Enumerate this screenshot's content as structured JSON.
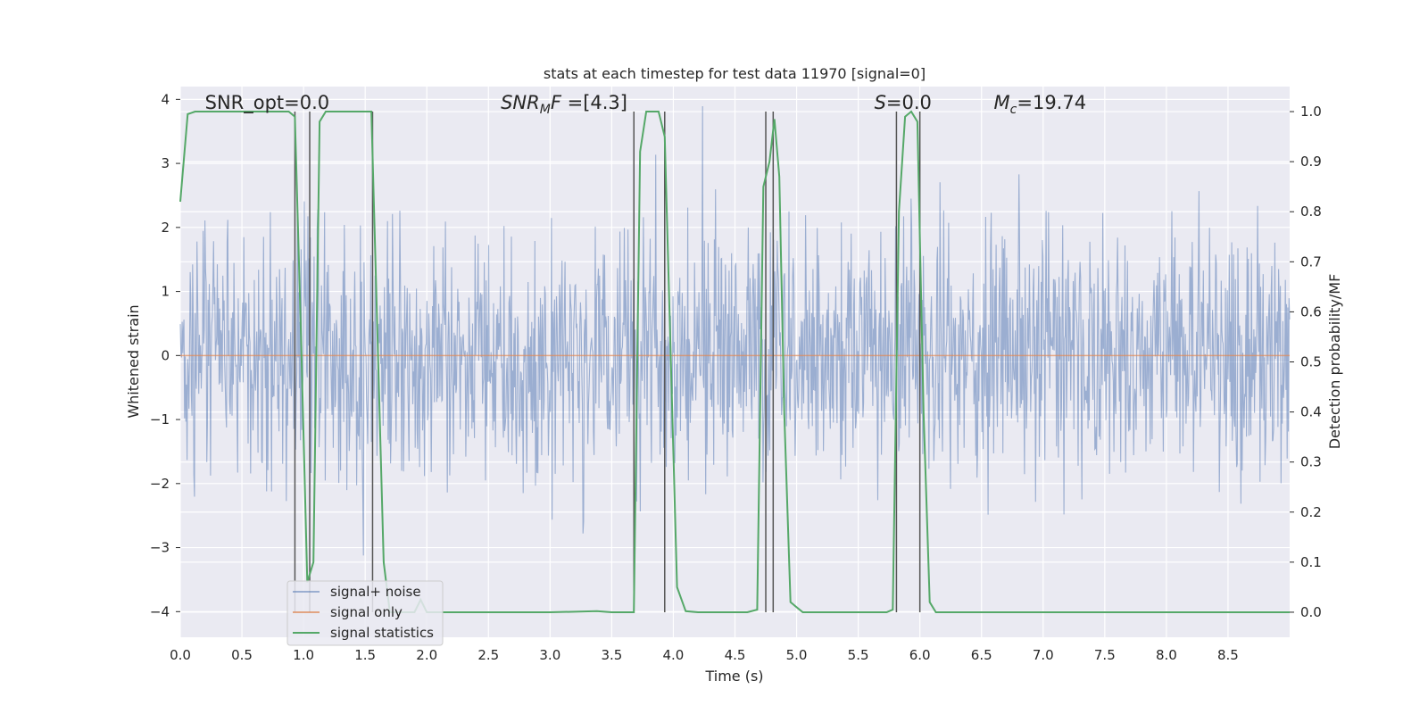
{
  "chart_data": {
    "type": "line",
    "title": "stats at each timestep for test data 11970 [signal=0]",
    "xlabel": "Time (s)",
    "ylabel": "Whitened strain",
    "y2label": "Detection probability/MF",
    "xlim": [
      0,
      9.0
    ],
    "ylim": [
      -4.4,
      4.2
    ],
    "y2lim": [
      -0.05,
      1.05
    ],
    "xticks": [
      "0.0",
      "0.5",
      "1.0",
      "1.5",
      "2.0",
      "2.5",
      "3.0",
      "3.5",
      "4.0",
      "4.5",
      "5.0",
      "5.5",
      "6.0",
      "6.5",
      "7.0",
      "7.5",
      "8.0",
      "8.5"
    ],
    "xtick_values": [
      0,
      0.5,
      1,
      1.5,
      2,
      2.5,
      3,
      3.5,
      4,
      4.5,
      5,
      5.5,
      6,
      6.5,
      7,
      7.5,
      8,
      8.5
    ],
    "yticks": [
      "4",
      "3",
      "2",
      "1",
      "0",
      "−1",
      "−2",
      "−3",
      "−4"
    ],
    "ytick_values": [
      4,
      3,
      2,
      1,
      0,
      -1,
      -2,
      -3,
      -4
    ],
    "y2ticks": [
      "1.0",
      "0.9",
      "0.8",
      "0.7",
      "0.6",
      "0.5",
      "0.4",
      "0.3",
      "0.2",
      "0.1",
      "0.0"
    ],
    "y2tick_values": [
      1.0,
      0.9,
      0.8,
      0.7,
      0.6,
      0.5,
      0.4,
      0.3,
      0.2,
      0.1,
      0.0
    ],
    "grid": true,
    "legend_position": "lower-left",
    "annotations": [
      {
        "text": "SNR_opt=0.0",
        "x": 0.2,
        "y": 3.95
      },
      {
        "text_main": "SNR",
        "text_sub": "M",
        "text_tail": "F=[4.3]",
        "x": 2.6,
        "y": 3.95
      },
      {
        "text_main": "S",
        "text_tail": "=0.0",
        "x": 5.63,
        "y": 3.95
      },
      {
        "text_main": "M",
        "text_sub": "c",
        "text_tail": "=19.74",
        "x": 6.6,
        "y": 3.95
      }
    ],
    "series": [
      {
        "name": "signal+ noise",
        "color": "#4c72b0",
        "alpha": 0.5,
        "axis": "left",
        "noise_sigma": 0.95,
        "sample_count": 1800
      },
      {
        "name": "signal only",
        "color": "#dd8452",
        "axis": "left",
        "x": [
          0,
          9.0
        ],
        "y": [
          0,
          0
        ]
      },
      {
        "name": "signal statistics",
        "color": "#55a868",
        "axis": "right",
        "x": [
          0.0,
          0.06,
          0.12,
          0.88,
          0.93,
          0.98,
          1.03,
          1.08,
          1.13,
          1.18,
          1.55,
          1.6,
          1.65,
          1.7,
          1.8,
          1.9,
          1.95,
          2.0,
          2.5,
          3.0,
          3.38,
          3.5,
          3.68,
          3.73,
          3.78,
          3.83,
          3.88,
          3.93,
          3.98,
          4.03,
          4.1,
          4.2,
          4.4,
          4.6,
          4.68,
          4.73,
          4.78,
          4.82,
          4.86,
          4.9,
          4.95,
          5.05,
          5.5,
          5.73,
          5.78,
          5.83,
          5.88,
          5.93,
          5.98,
          6.03,
          6.08,
          6.13,
          6.5,
          7,
          7.5,
          8,
          8.5,
          9.0
        ],
        "y": [
          0.82,
          0.995,
          1.0,
          1.0,
          0.99,
          0.55,
          0.06,
          0.1,
          0.98,
          1.0,
          1.0,
          0.55,
          0.1,
          0.0,
          0.0,
          0.0,
          0.025,
          0.0,
          0.0,
          0.0,
          0.002,
          0.0,
          0.0,
          0.92,
          1.0,
          1.0,
          1.0,
          0.95,
          0.5,
          0.05,
          0.002,
          0.0,
          0.0,
          0.0,
          0.005,
          0.85,
          0.9,
          0.985,
          0.87,
          0.4,
          0.02,
          0.0,
          0.0,
          0.0,
          0.005,
          0.8,
          0.99,
          1.0,
          0.98,
          0.4,
          0.02,
          0.0,
          0.0,
          0.0,
          0.0,
          0.0,
          0.0,
          0.0
        ]
      },
      {
        "name": "detection markers",
        "color": "#555555",
        "axis": "right",
        "x": [
          0.93,
          1.05,
          1.56,
          3.68,
          3.93,
          4.75,
          4.81,
          5.81,
          6.0
        ]
      }
    ]
  }
}
